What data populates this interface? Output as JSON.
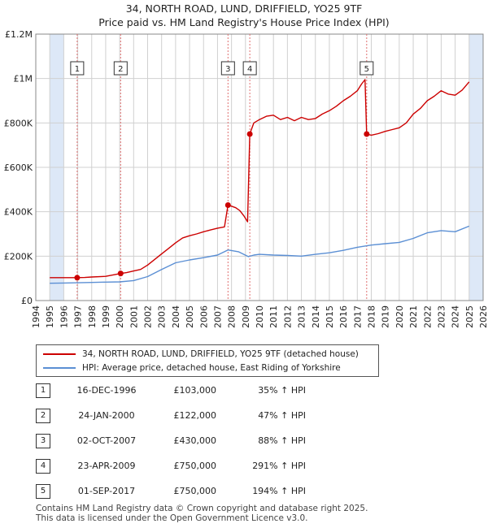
{
  "title": "34, NORTH ROAD, LUND, DRIFFIELD, YO25 9TF",
  "subtitle": "Price paid vs. HM Land Registry's House Price Index (HPI)",
  "colors": {
    "property": "#cc0000",
    "hpi": "#5b8fd4",
    "shade": "#dde8f7",
    "marker_line": "#e07070",
    "grid": "#d0d0d0"
  },
  "chart_data": {
    "type": "line",
    "xlim": [
      1994,
      2026
    ],
    "ylim": [
      0,
      1200000
    ],
    "x_ticks": [
      1994,
      1995,
      1996,
      1997,
      1998,
      1999,
      2000,
      2001,
      2002,
      2003,
      2004,
      2005,
      2006,
      2007,
      2008,
      2009,
      2010,
      2011,
      2012,
      2013,
      2014,
      2015,
      2016,
      2017,
      2018,
      2019,
      2020,
      2021,
      2022,
      2023,
      2024,
      2025,
      2026
    ],
    "y_ticks": [
      {
        "value": 0,
        "label": "£0"
      },
      {
        "value": 200000,
        "label": "£200K"
      },
      {
        "value": 400000,
        "label": "£400K"
      },
      {
        "value": 600000,
        "label": "£600K"
      },
      {
        "value": 800000,
        "label": "£800K"
      },
      {
        "value": 1000000,
        "label": "£1M"
      },
      {
        "value": 1200000,
        "label": "£1.2M"
      }
    ],
    "shaded_ranges": [
      [
        1995.0,
        1996.0
      ],
      [
        2025.0,
        2026.0
      ]
    ],
    "series": [
      {
        "name": "34, NORTH ROAD, LUND, DRIFFIELD, YO25 9TF (detached house)",
        "points": [
          [
            1995.0,
            103000
          ],
          [
            1996.0,
            103000
          ],
          [
            1996.96,
            103000
          ],
          [
            1997.5,
            104000
          ],
          [
            1998.0,
            106000
          ],
          [
            1999.0,
            109000
          ],
          [
            2000.07,
            122000
          ],
          [
            2000.5,
            126000
          ],
          [
            2001.0,
            133000
          ],
          [
            2001.5,
            140000
          ],
          [
            2002.0,
            160000
          ],
          [
            2002.5,
            185000
          ],
          [
            2003.0,
            210000
          ],
          [
            2003.5,
            235000
          ],
          [
            2004.0,
            260000
          ],
          [
            2004.5,
            282000
          ],
          [
            2005.0,
            292000
          ],
          [
            2005.5,
            300000
          ],
          [
            2006.0,
            310000
          ],
          [
            2006.5,
            318000
          ],
          [
            2007.0,
            326000
          ],
          [
            2007.5,
            332000
          ],
          [
            2007.75,
            430000
          ],
          [
            2008.0,
            425000
          ],
          [
            2008.3,
            418000
          ],
          [
            2008.6,
            405000
          ],
          [
            2008.9,
            380000
          ],
          [
            2009.15,
            355000
          ],
          [
            2009.31,
            750000
          ],
          [
            2009.6,
            800000
          ],
          [
            2010.0,
            815000
          ],
          [
            2010.5,
            830000
          ],
          [
            2011.0,
            835000
          ],
          [
            2011.5,
            815000
          ],
          [
            2012.0,
            825000
          ],
          [
            2012.5,
            810000
          ],
          [
            2013.0,
            825000
          ],
          [
            2013.5,
            815000
          ],
          [
            2014.0,
            820000
          ],
          [
            2014.5,
            840000
          ],
          [
            2015.0,
            855000
          ],
          [
            2015.5,
            875000
          ],
          [
            2016.0,
            900000
          ],
          [
            2016.5,
            920000
          ],
          [
            2017.0,
            945000
          ],
          [
            2017.3,
            975000
          ],
          [
            2017.55,
            995000
          ],
          [
            2017.67,
            750000
          ],
          [
            2018.0,
            745000
          ],
          [
            2018.5,
            752000
          ],
          [
            2019.0,
            762000
          ],
          [
            2019.5,
            770000
          ],
          [
            2020.0,
            778000
          ],
          [
            2020.5,
            800000
          ],
          [
            2021.0,
            840000
          ],
          [
            2021.5,
            865000
          ],
          [
            2022.0,
            900000
          ],
          [
            2022.5,
            920000
          ],
          [
            2023.0,
            945000
          ],
          [
            2023.5,
            930000
          ],
          [
            2024.0,
            925000
          ],
          [
            2024.5,
            948000
          ],
          [
            2025.0,
            985000
          ]
        ]
      },
      {
        "name": "HPI: Average price, detached house, East Riding of Yorkshire",
        "points": [
          [
            1995.0,
            78000
          ],
          [
            1996.0,
            79000
          ],
          [
            1997.0,
            80000
          ],
          [
            1998.0,
            81500
          ],
          [
            1999.0,
            83000
          ],
          [
            2000.0,
            84000
          ],
          [
            2001.0,
            90000
          ],
          [
            2002.0,
            108000
          ],
          [
            2003.0,
            140000
          ],
          [
            2004.0,
            170000
          ],
          [
            2005.0,
            183000
          ],
          [
            2006.0,
            193000
          ],
          [
            2007.0,
            205000
          ],
          [
            2007.75,
            228000
          ],
          [
            2008.5,
            220000
          ],
          [
            2009.2,
            198000
          ],
          [
            2009.6,
            205000
          ],
          [
            2010.0,
            208000
          ],
          [
            2011.0,
            205000
          ],
          [
            2012.0,
            203000
          ],
          [
            2013.0,
            200000
          ],
          [
            2014.0,
            208000
          ],
          [
            2015.0,
            215000
          ],
          [
            2016.0,
            226000
          ],
          [
            2017.0,
            240000
          ],
          [
            2018.0,
            250000
          ],
          [
            2019.0,
            256000
          ],
          [
            2020.0,
            262000
          ],
          [
            2021.0,
            280000
          ],
          [
            2022.0,
            305000
          ],
          [
            2023.0,
            315000
          ],
          [
            2024.0,
            310000
          ],
          [
            2025.0,
            335000
          ]
        ]
      }
    ],
    "sales": [
      {
        "id": "1",
        "x": 1996.96,
        "price": 103000
      },
      {
        "id": "2",
        "x": 2000.07,
        "price": 122000
      },
      {
        "id": "3",
        "x": 2007.75,
        "price": 430000
      },
      {
        "id": "4",
        "x": 2009.31,
        "price": 750000
      },
      {
        "id": "5",
        "x": 2017.67,
        "price": 750000
      }
    ]
  },
  "legend": {
    "property_label": "34, NORTH ROAD, LUND, DRIFFIELD, YO25 9TF (detached house)",
    "hpi_label": "HPI: Average price, detached house, East Riding of Yorkshire"
  },
  "sales_table": [
    {
      "num": "1",
      "date": "16-DEC-1996",
      "price": "£103,000",
      "hpi": "35% ↑ HPI"
    },
    {
      "num": "2",
      "date": "24-JAN-2000",
      "price": "£122,000",
      "hpi": "47% ↑ HPI"
    },
    {
      "num": "3",
      "date": "02-OCT-2007",
      "price": "£430,000",
      "hpi": "88% ↑ HPI"
    },
    {
      "num": "4",
      "date": "23-APR-2009",
      "price": "£750,000",
      "hpi": "291% ↑ HPI"
    },
    {
      "num": "5",
      "date": "01-SEP-2017",
      "price": "£750,000",
      "hpi": "194% ↑ HPI"
    }
  ],
  "footer": {
    "line1": "Contains HM Land Registry data © Crown copyright and database right 2025.",
    "line2": "This data is licensed under the Open Government Licence v3.0."
  }
}
